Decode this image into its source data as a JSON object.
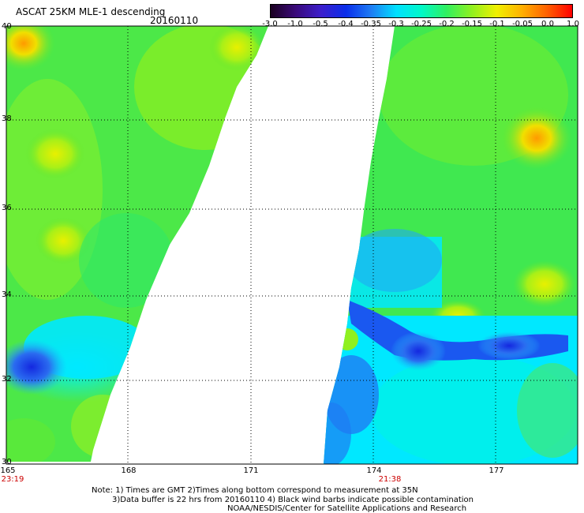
{
  "header": {
    "title": "ASCAT 25KM MLE-1 descending",
    "date": "20160110"
  },
  "colorbar": {
    "ticks": [
      "-3.0",
      "-1.0",
      "-0.5",
      "-0.4",
      "-0.35",
      "-0.3",
      "-0.25",
      "-0.2",
      "-0.15",
      "-0.1",
      "-0.05",
      "0.0",
      "1.0"
    ],
    "colors": [
      "#1a0020",
      "#3a0a7a",
      "#3c1ecc",
      "#0a2eea",
      "#1e7cf4",
      "#00e0ff",
      "#00f8c8",
      "#30f060",
      "#90f020",
      "#f0f000",
      "#ffb000",
      "#ff6000",
      "#ff0000"
    ]
  },
  "map": {
    "lat_labels": [
      "40",
      "38",
      "36",
      "34",
      "32",
      "30"
    ],
    "lon_labels": [
      "165",
      "168",
      "171",
      "174",
      "177"
    ],
    "times": [
      "23:19",
      "21:38"
    ],
    "grid": "dotted"
  },
  "footer": {
    "line1": "Note: 1) Times are GMT 2)Times along bottom correspond to measurement at 35N",
    "line2": "3)Data buffer is 22 hrs from 20160110 4) Black wind barbs indicate possible contamination",
    "line3": "NOAA/NESDIS/Center for Satellite Applications and Research"
  }
}
